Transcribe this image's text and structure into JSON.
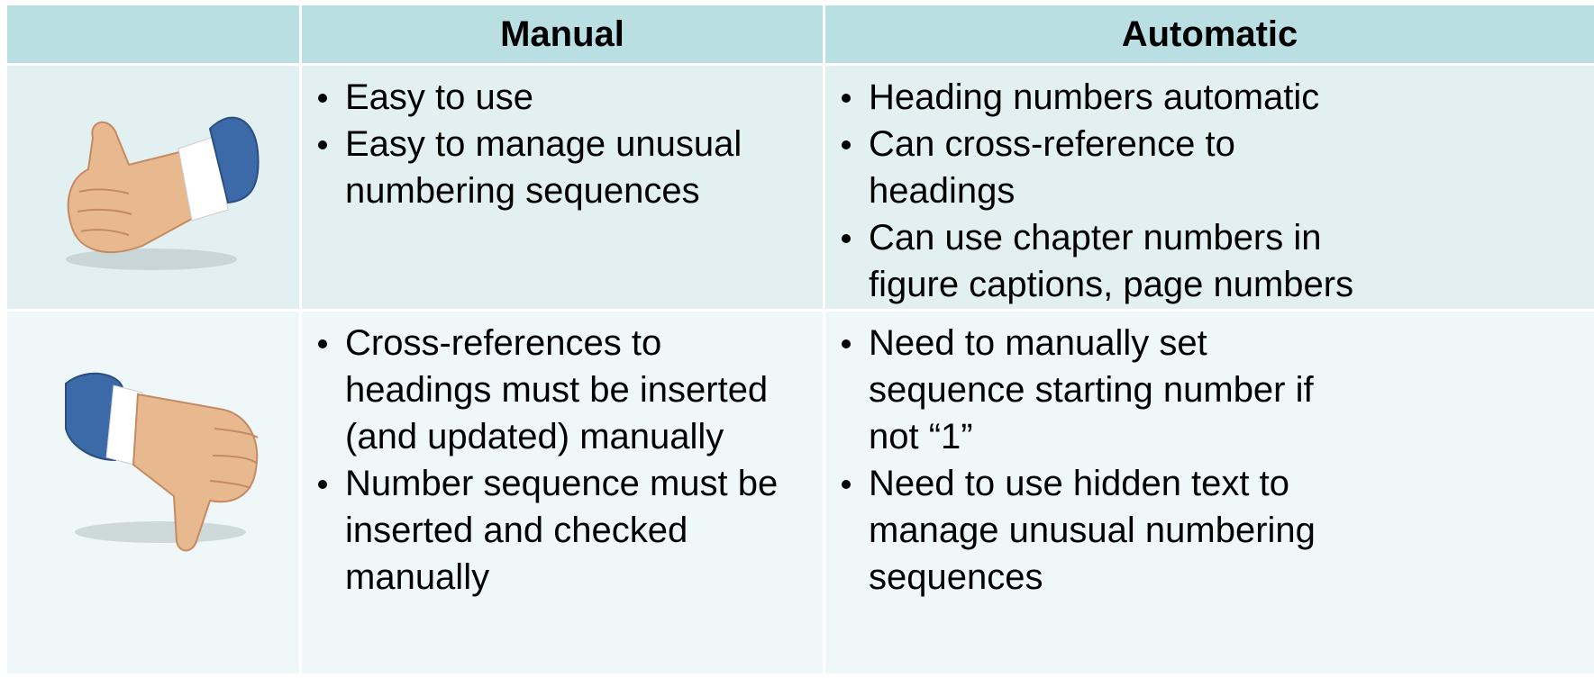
{
  "header": {
    "columns": [
      "Manual",
      "Automatic"
    ]
  },
  "rows": [
    {
      "manual": [
        [
          "Easy to use"
        ],
        [
          "Easy to manage unusual",
          "numbering sequences"
        ]
      ],
      "automatic": [
        [
          "Heading numbers automatic"
        ],
        [
          "Can cross-reference to",
          "headings"
        ],
        [
          "Can use chapter numbers in",
          "figure captions, page numbers"
        ]
      ]
    },
    {
      "manual": [
        [
          "Cross-references to",
          "headings must be inserted",
          "(and updated) manually"
        ],
        [
          "Number sequence must be",
          "inserted and checked",
          "manually"
        ]
      ],
      "automatic": [
        [
          "Need to manually set",
          "sequence starting number if",
          "not “1”"
        ],
        [
          "Need to use hidden text to",
          "manage unusual numbering",
          "sequences"
        ]
      ]
    }
  ]
}
